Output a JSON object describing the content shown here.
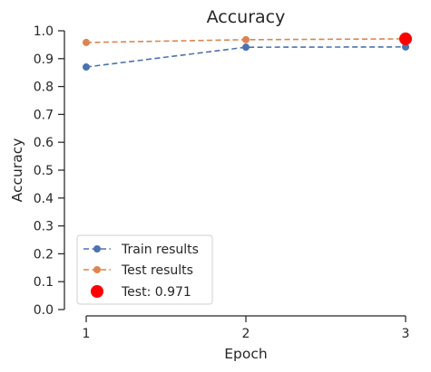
{
  "chart_data": {
    "type": "line",
    "title": "Accuracy",
    "xlabel": "Epoch",
    "ylabel": "Accuracy",
    "x": [
      1,
      2,
      3
    ],
    "xticks": [
      "1",
      "2",
      "3"
    ],
    "xlim": [
      1,
      3
    ],
    "ylim": [
      0,
      1.0
    ],
    "yticks": [
      "0.0",
      "0.1",
      "0.2",
      "0.3",
      "0.4",
      "0.5",
      "0.6",
      "0.7",
      "0.8",
      "0.9",
      "1.0"
    ],
    "grid": false,
    "legend_position": "lower-left",
    "series": [
      {
        "name": "Train results",
        "values": [
          0.87,
          0.941,
          0.942
        ],
        "color": "#4c72b0",
        "linestyle": "dashed",
        "marker": "circle"
      },
      {
        "name": "Test results",
        "values": [
          0.958,
          0.968,
          0.971
        ],
        "color": "#dd8452",
        "linestyle": "dashed",
        "marker": "circle"
      }
    ],
    "highlight": {
      "name": "Test: 0.971",
      "x": 3,
      "y": 0.971,
      "color": "#ff0000"
    }
  }
}
